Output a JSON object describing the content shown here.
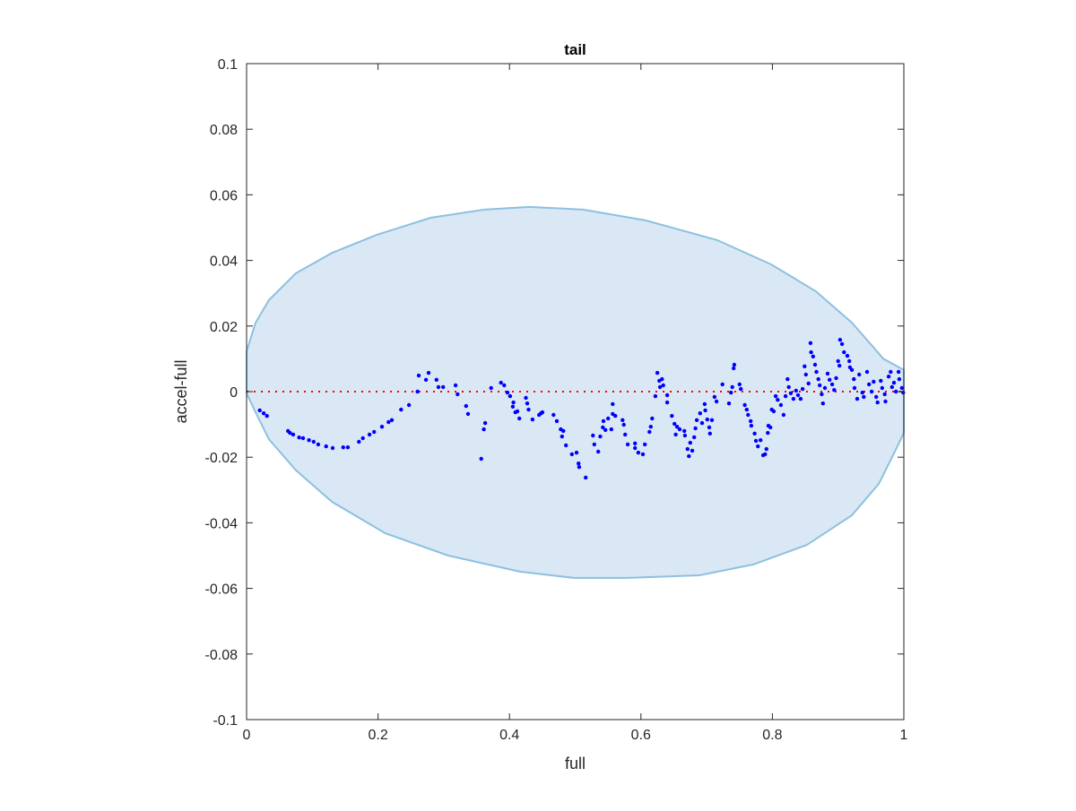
{
  "chart_data": {
    "type": "scatter",
    "title": "tail",
    "xlabel": "full",
    "ylabel": "accel-full",
    "xlim": [
      0,
      1
    ],
    "ylim": [
      -0.1,
      0.1
    ],
    "grid": false,
    "xticks": [
      0,
      0.2,
      0.4,
      0.6,
      0.8,
      1
    ],
    "xtick_labels": [
      "0",
      "0.2",
      "0.4",
      "0.6",
      "0.8",
      "1"
    ],
    "yticks": [
      0.1,
      0.08,
      0.06,
      0.04,
      0.02,
      0,
      -0.02,
      -0.04,
      -0.06,
      -0.08,
      -0.1
    ],
    "ytick_labels": [
      "0.1",
      "0.08",
      "0.06",
      "0.04",
      "0.02",
      "0",
      "-0.02",
      "-0.04",
      "-0.06",
      "-0.08",
      "-0.1"
    ],
    "colors": {
      "points": "#0000ff",
      "zero_line": "#ff0000",
      "region_fill": "#d9e8f4",
      "region_edge": "#8dc0e0"
    },
    "reference_line": {
      "y": 0,
      "style": "dotted"
    },
    "region_outline": [
      [
        0,
        0.0123
      ],
      [
        0.0136,
        0.021
      ],
      [
        0.034,
        0.0279
      ],
      [
        0.075,
        0.0361
      ],
      [
        0.13,
        0.0423
      ],
      [
        0.198,
        0.0478
      ],
      [
        0.28,
        0.053
      ],
      [
        0.362,
        0.0555
      ],
      [
        0.43,
        0.0563
      ],
      [
        0.512,
        0.0555
      ],
      [
        0.607,
        0.0522
      ],
      [
        0.716,
        0.0462
      ],
      [
        0.798,
        0.0388
      ],
      [
        0.866,
        0.0306
      ],
      [
        0.921,
        0.021
      ],
      [
        0.969,
        0.01
      ],
      [
        1,
        0.0066
      ],
      [
        1,
        -0.0126
      ],
      [
        0.989,
        -0.0172
      ],
      [
        0.962,
        -0.0281
      ],
      [
        0.921,
        -0.0377
      ],
      [
        0.853,
        -0.0467
      ],
      [
        0.771,
        -0.0527
      ],
      [
        0.689,
        -0.056
      ],
      [
        0.58,
        -0.0568
      ],
      [
        0.498,
        -0.0568
      ],
      [
        0.416,
        -0.0549
      ],
      [
        0.307,
        -0.05
      ],
      [
        0.211,
        -0.0432
      ],
      [
        0.13,
        -0.0336
      ],
      [
        0.075,
        -0.024
      ],
      [
        0.034,
        -0.0145
      ],
      [
        0.0136,
        -0.0063
      ],
      [
        0,
        -0.0005
      ]
    ],
    "points": [
      [
        0.02,
        -0.0057
      ],
      [
        0.026,
        -0.0066
      ],
      [
        0.031,
        -0.0074
      ],
      [
        0.063,
        -0.012
      ],
      [
        0.066,
        -0.0126
      ],
      [
        0.071,
        -0.0131
      ],
      [
        0.08,
        -0.014
      ],
      [
        0.086,
        -0.0142
      ],
      [
        0.095,
        -0.0148
      ],
      [
        0.102,
        -0.0153
      ],
      [
        0.109,
        -0.0161
      ],
      [
        0.121,
        -0.0167
      ],
      [
        0.131,
        -0.0172
      ],
      [
        0.147,
        -0.017
      ],
      [
        0.154,
        -0.017
      ],
      [
        0.171,
        -0.0153
      ],
      [
        0.177,
        -0.0142
      ],
      [
        0.187,
        -0.0131
      ],
      [
        0.194,
        -0.0123
      ],
      [
        0.206,
        -0.0107
      ],
      [
        0.216,
        -0.0093
      ],
      [
        0.221,
        -0.0087
      ],
      [
        0.235,
        -0.0055
      ],
      [
        0.247,
        -0.0041
      ],
      [
        0.26,
        0.0
      ],
      [
        0.262,
        0.0049
      ],
      [
        0.273,
        0.0036
      ],
      [
        0.277,
        0.0057
      ],
      [
        0.289,
        0.0036
      ],
      [
        0.292,
        0.0014
      ],
      [
        0.299,
        0.0014
      ],
      [
        0.318,
        0.0019
      ],
      [
        0.321,
        -0.0008
      ],
      [
        0.334,
        -0.0044
      ],
      [
        0.337,
        -0.0068
      ],
      [
        0.357,
        -0.0205
      ],
      [
        0.361,
        -0.0115
      ],
      [
        0.363,
        -0.0096
      ],
      [
        0.372,
        0.0011
      ],
      [
        0.387,
        0.0027
      ],
      [
        0.392,
        0.0019
      ],
      [
        0.397,
        -0.0003
      ],
      [
        0.401,
        -0.0014
      ],
      [
        0.406,
        -0.0033
      ],
      [
        0.405,
        -0.0046
      ],
      [
        0.409,
        -0.0063
      ],
      [
        0.412,
        -0.006
      ],
      [
        0.415,
        -0.0082
      ],
      [
        0.425,
        -0.0019
      ],
      [
        0.427,
        -0.0036
      ],
      [
        0.429,
        -0.0055
      ],
      [
        0.435,
        -0.0085
      ],
      [
        0.445,
        -0.0071
      ],
      [
        0.448,
        -0.0066
      ],
      [
        0.45,
        -0.0063
      ],
      [
        0.467,
        -0.0071
      ],
      [
        0.472,
        -0.009
      ],
      [
        0.478,
        -0.0115
      ],
      [
        0.482,
        -0.012
      ],
      [
        0.48,
        -0.0137
      ],
      [
        0.486,
        -0.0164
      ],
      [
        0.495,
        -0.0191
      ],
      [
        0.502,
        -0.0186
      ],
      [
        0.505,
        -0.0219
      ],
      [
        0.506,
        -0.023
      ],
      [
        0.516,
        -0.0262
      ],
      [
        0.527,
        -0.0134
      ],
      [
        0.529,
        -0.0161
      ],
      [
        0.535,
        -0.0183
      ],
      [
        0.538,
        -0.0137
      ],
      [
        0.542,
        -0.0109
      ],
      [
        0.543,
        -0.009
      ],
      [
        0.546,
        -0.0117
      ],
      [
        0.55,
        -0.0082
      ],
      [
        0.555,
        -0.0115
      ],
      [
        0.557,
        -0.0068
      ],
      [
        0.557,
        -0.0038
      ],
      [
        0.561,
        -0.0074
      ],
      [
        0.572,
        -0.0087
      ],
      [
        0.574,
        -0.0101
      ],
      [
        0.576,
        -0.0131
      ],
      [
        0.58,
        -0.0161
      ],
      [
        0.591,
        -0.0158
      ],
      [
        0.591,
        -0.0172
      ],
      [
        0.596,
        -0.0186
      ],
      [
        0.603,
        -0.0191
      ],
      [
        0.606,
        -0.0161
      ],
      [
        0.613,
        -0.0123
      ],
      [
        0.615,
        -0.0107
      ],
      [
        0.617,
        -0.0082
      ],
      [
        0.622,
        -0.0014
      ],
      [
        0.625,
        0.0057
      ],
      [
        0.628,
        0.0033
      ],
      [
        0.629,
        0.0014
      ],
      [
        0.632,
        0.0038
      ],
      [
        0.634,
        0.0019
      ],
      [
        0.64,
        -0.0011
      ],
      [
        0.64,
        -0.0033
      ],
      [
        0.647,
        -0.0074
      ],
      [
        0.651,
        -0.0098
      ],
      [
        0.653,
        -0.0131
      ],
      [
        0.655,
        -0.0107
      ],
      [
        0.659,
        -0.0115
      ],
      [
        0.666,
        -0.012
      ],
      [
        0.667,
        -0.0134
      ],
      [
        0.671,
        -0.0175
      ],
      [
        0.673,
        -0.0197
      ],
      [
        0.675,
        -0.0156
      ],
      [
        0.678,
        -0.018
      ],
      [
        0.681,
        -0.0139
      ],
      [
        0.683,
        -0.0112
      ],
      [
        0.685,
        -0.0087
      ],
      [
        0.69,
        -0.0066
      ],
      [
        0.693,
        -0.0096
      ],
      [
        0.697,
        -0.0038
      ],
      [
        0.698,
        -0.0057
      ],
      [
        0.701,
        -0.0085
      ],
      [
        0.704,
        -0.0109
      ],
      [
        0.705,
        -0.0128
      ],
      [
        0.708,
        -0.0087
      ],
      [
        0.712,
        -0.0016
      ],
      [
        0.715,
        -0.003
      ],
      [
        0.724,
        0.0022
      ],
      [
        0.734,
        -0.0036
      ],
      [
        0.737,
        -0.0003
      ],
      [
        0.739,
        0.0014
      ],
      [
        0.741,
        0.0071
      ],
      [
        0.742,
        0.0082
      ],
      [
        0.75,
        0.0022
      ],
      [
        0.752,
        0.0008
      ],
      [
        0.758,
        -0.0041
      ],
      [
        0.761,
        -0.0055
      ],
      [
        0.763,
        -0.0071
      ],
      [
        0.767,
        -0.009
      ],
      [
        0.768,
        -0.0104
      ],
      [
        0.773,
        -0.0128
      ],
      [
        0.775,
        -0.015
      ],
      [
        0.778,
        -0.0167
      ],
      [
        0.782,
        -0.0148
      ],
      [
        0.786,
        -0.0194
      ],
      [
        0.789,
        -0.0191
      ],
      [
        0.791,
        -0.0175
      ],
      [
        0.793,
        -0.0126
      ],
      [
        0.794,
        -0.0104
      ],
      [
        0.797,
        -0.0109
      ],
      [
        0.799,
        -0.0055
      ],
      [
        0.802,
        -0.006
      ],
      [
        0.805,
        -0.0014
      ],
      [
        0.808,
        -0.0025
      ],
      [
        0.813,
        -0.0041
      ],
      [
        0.817,
        -0.0071
      ],
      [
        0.82,
        -0.0014
      ],
      [
        0.823,
        0.0038
      ],
      [
        0.825,
        0.0014
      ],
      [
        0.828,
        -0.0005
      ],
      [
        0.832,
        -0.0022
      ],
      [
        0.836,
        0.0003
      ],
      [
        0.839,
        -0.0011
      ],
      [
        0.843,
        -0.0022
      ],
      [
        0.846,
        0.0008
      ],
      [
        0.849,
        0.0077
      ],
      [
        0.851,
        0.0052
      ],
      [
        0.855,
        0.0025
      ],
      [
        0.858,
        0.0148
      ],
      [
        0.859,
        0.012
      ],
      [
        0.862,
        0.0107
      ],
      [
        0.865,
        0.0082
      ],
      [
        0.867,
        0.006
      ],
      [
        0.87,
        0.0038
      ],
      [
        0.872,
        0.0019
      ],
      [
        0.875,
        -0.0008
      ],
      [
        0.877,
        -0.0036
      ],
      [
        0.88,
        0.0011
      ],
      [
        0.884,
        0.0055
      ],
      [
        0.887,
        0.0036
      ],
      [
        0.891,
        0.0022
      ],
      [
        0.894,
        0.0005
      ],
      [
        0.897,
        0.0041
      ],
      [
        0.9,
        0.0093
      ],
      [
        0.902,
        0.0079
      ],
      [
        0.903,
        0.0158
      ],
      [
        0.906,
        0.0145
      ],
      [
        0.909,
        0.012
      ],
      [
        0.914,
        0.0109
      ],
      [
        0.917,
        0.0093
      ],
      [
        0.918,
        0.0074
      ],
      [
        0.921,
        0.0066
      ],
      [
        0.924,
        0.0038
      ],
      [
        0.925,
        0.0011
      ],
      [
        0.929,
        -0.0022
      ],
      [
        0.932,
        0.0052
      ],
      [
        0.937,
        -0.0003
      ],
      [
        0.939,
        -0.0016
      ],
      [
        0.944,
        0.006
      ],
      [
        0.947,
        0.0022
      ],
      [
        0.951,
        0.0
      ],
      [
        0.954,
        0.003
      ],
      [
        0.958,
        -0.0016
      ],
      [
        0.96,
        -0.0033
      ],
      [
        0.965,
        0.0033
      ],
      [
        0.967,
        0.0011
      ],
      [
        0.971,
        -0.0008
      ],
      [
        0.972,
        -0.003
      ],
      [
        0.977,
        0.0046
      ],
      [
        0.98,
        0.006
      ],
      [
        0.982,
        0.0014
      ],
      [
        0.985,
        0.0027
      ],
      [
        0.988,
        0.0
      ],
      [
        0.992,
        0.006
      ],
      [
        0.993,
        0.0038
      ],
      [
        0.997,
        0.0011
      ],
      [
        0.999,
        -0.0003
      ]
    ]
  }
}
